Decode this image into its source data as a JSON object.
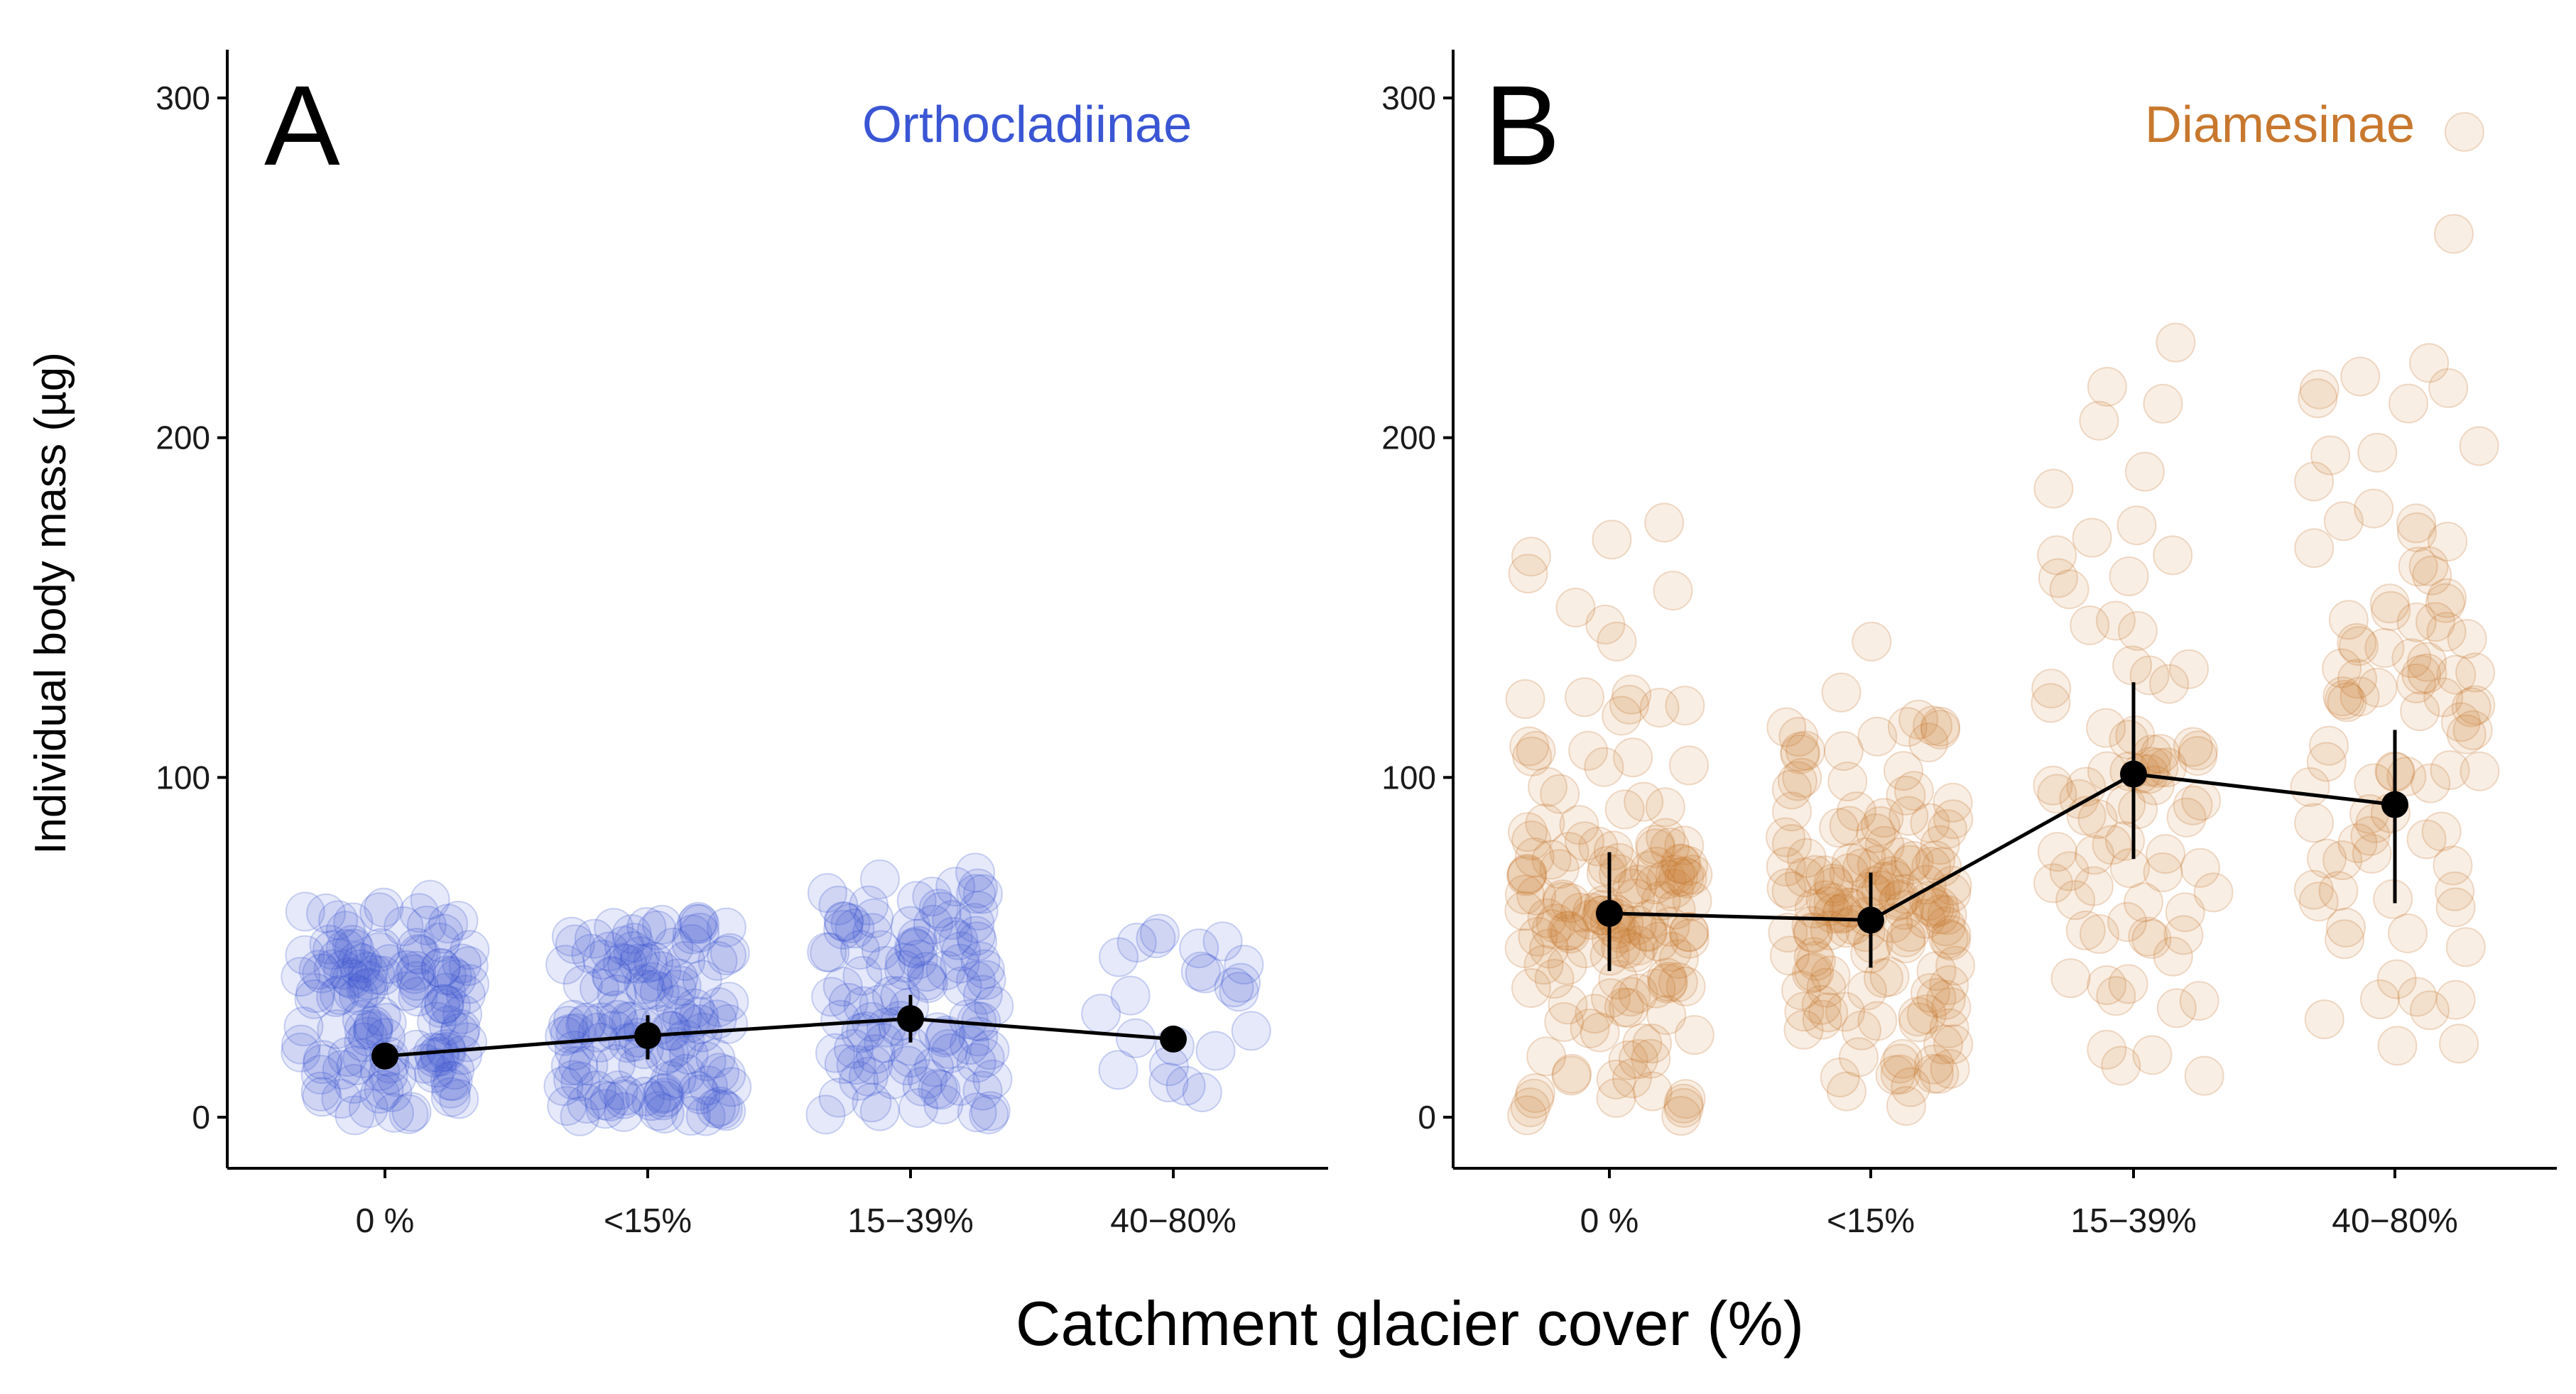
{
  "figure": {
    "xlabel": "Catchment glacier cover (%)",
    "ylabel": "Individual body mass (µg)"
  },
  "chart_data": [
    {
      "type": "scatter",
      "panel": "A",
      "title": "Orthocladiinae",
      "color": "#3a56d4",
      "categories": [
        "0 %",
        "<15%",
        "15−39%",
        "40−80%"
      ],
      "yticks": [
        0,
        100,
        200,
        300
      ],
      "ylim": [
        -12,
        315
      ],
      "means": [
        18,
        24,
        29,
        23
      ],
      "err_low": [
        15,
        17,
        22,
        20
      ],
      "err_high": [
        21,
        30,
        36,
        26
      ],
      "spread": [
        {
          "min": 0,
          "max": 62,
          "n": 130,
          "extras": [
            64,
            58,
            60
          ]
        },
        {
          "min": 0,
          "max": 58,
          "n": 130,
          "extras": [
            56,
            55
          ]
        },
        {
          "min": 0,
          "max": 68,
          "n": 110,
          "extras": [
            72,
            66,
            70
          ]
        },
        {
          "min": 5,
          "max": 55,
          "n": 22,
          "extras": [
            54
          ]
        }
      ]
    },
    {
      "type": "scatter",
      "panel": "B",
      "title": "Diamesinae",
      "color": "#c8782e",
      "categories": [
        "0 %",
        "<15%",
        "15−39%",
        "40−80%"
      ],
      "yticks": [
        0,
        100,
        200,
        300
      ],
      "ylim": [
        -12,
        315
      ],
      "means": [
        60,
        58,
        101,
        92
      ],
      "err_low": [
        43,
        44,
        76,
        63
      ],
      "err_high": [
        78,
        72,
        128,
        114
      ],
      "spread": [
        {
          "min": 0,
          "max": 125,
          "n": 150,
          "extras": [
            175,
            170,
            165,
            160,
            155,
            150,
            145,
            140
          ]
        },
        {
          "min": 2,
          "max": 120,
          "n": 150,
          "extras": [
            140,
            125
          ]
        },
        {
          "min": 8,
          "max": 175,
          "n": 75,
          "extras": [
            228,
            215,
            210,
            205,
            190,
            185
          ]
        },
        {
          "min": 20,
          "max": 215,
          "n": 90,
          "extras": [
            290,
            260,
            222,
            218
          ]
        }
      ]
    }
  ]
}
